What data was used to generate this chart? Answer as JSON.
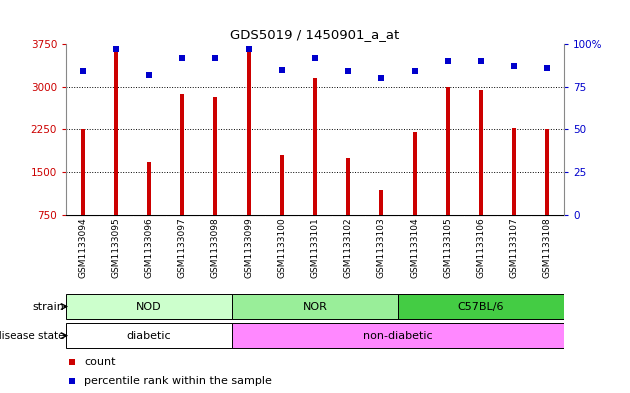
{
  "title": "GDS5019 / 1450901_a_at",
  "samples": [
    "GSM1133094",
    "GSM1133095",
    "GSM1133096",
    "GSM1133097",
    "GSM1133098",
    "GSM1133099",
    "GSM1133100",
    "GSM1133101",
    "GSM1133102",
    "GSM1133103",
    "GSM1133104",
    "GSM1133105",
    "GSM1133106",
    "GSM1133107",
    "GSM1133108"
  ],
  "counts": [
    2250,
    3680,
    1680,
    2870,
    2820,
    3720,
    1800,
    3150,
    1750,
    1180,
    2200,
    2990,
    2950,
    2270,
    2260
  ],
  "percentiles": [
    84,
    97,
    82,
    92,
    92,
    97,
    85,
    92,
    84,
    80,
    84,
    90,
    90,
    87,
    86
  ],
  "ylim_left": [
    750,
    3750
  ],
  "ylim_right": [
    0,
    100
  ],
  "yticks_left": [
    750,
    1500,
    2250,
    3000,
    3750
  ],
  "yticks_right": [
    0,
    25,
    50,
    75,
    100
  ],
  "bar_color": "#cc0000",
  "dot_color": "#0000cc",
  "strain_labels": [
    "NOD",
    "NOR",
    "C57BL/6"
  ],
  "strain_ranges": [
    [
      0,
      4
    ],
    [
      5,
      9
    ],
    [
      10,
      14
    ]
  ],
  "strain_colors": [
    "#ccffcc",
    "#99ee99",
    "#44cc44"
  ],
  "disease_labels": [
    "diabetic",
    "non-diabetic"
  ],
  "disease_ranges": [
    [
      0,
      4
    ],
    [
      5,
      14
    ]
  ],
  "disease_color": "#ff88ff",
  "bg_color": "#ffffff",
  "bar_bg_color": "#c8c8c8",
  "legend_count": "count",
  "legend_pct": "percentile rank within the sample"
}
